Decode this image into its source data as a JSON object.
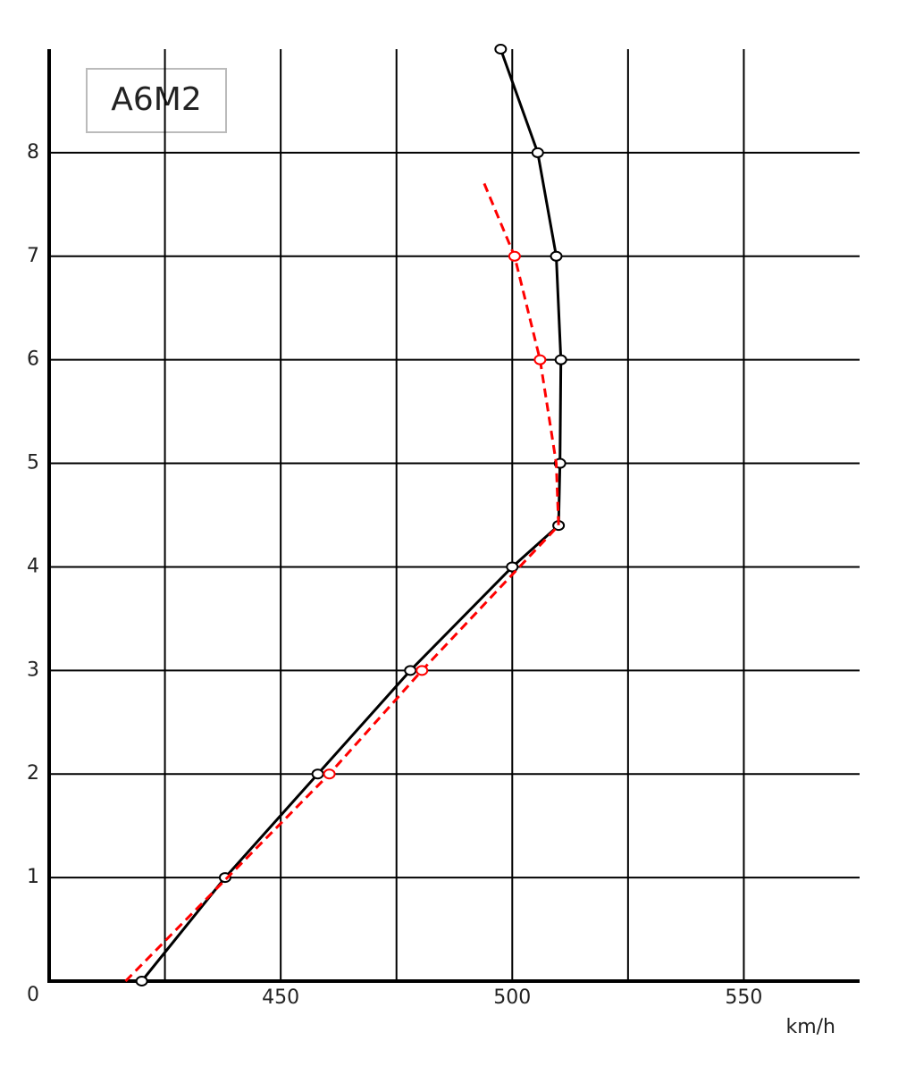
{
  "chart_data": {
    "type": "line",
    "title": "A6M2",
    "x_label": "km/h",
    "xlim": [
      400,
      575
    ],
    "ylim": [
      0,
      9
    ],
    "xticks": [
      450,
      500,
      550
    ],
    "xgrid": [
      425,
      450,
      475,
      500,
      525,
      550
    ],
    "yticks": [
      0,
      1,
      2,
      3,
      4,
      5,
      6,
      7,
      8
    ],
    "grid": true,
    "series": [
      {
        "color": "#000000",
        "dashed": false,
        "x": [
          420,
          438,
          458,
          478,
          500,
          510,
          510.3,
          510.5,
          509.5,
          505.5,
          497.5
        ],
        "values": [
          0,
          1,
          2,
          3,
          4,
          4.4,
          5,
          6,
          7,
          8,
          9
        ],
        "markers": [
          true,
          true,
          true,
          true,
          true,
          true,
          true,
          true,
          true,
          true,
          true
        ]
      },
      {
        "color": "#ff0000",
        "dashed": true,
        "x": [
          416.5,
          460.5,
          480.5,
          510,
          509.5,
          506,
          500.5,
          493.5
        ],
        "values": [
          0,
          2,
          3,
          4.4,
          5,
          6,
          7,
          7.75
        ],
        "markers": [
          false,
          true,
          true,
          false,
          false,
          true,
          true,
          false
        ]
      }
    ]
  }
}
